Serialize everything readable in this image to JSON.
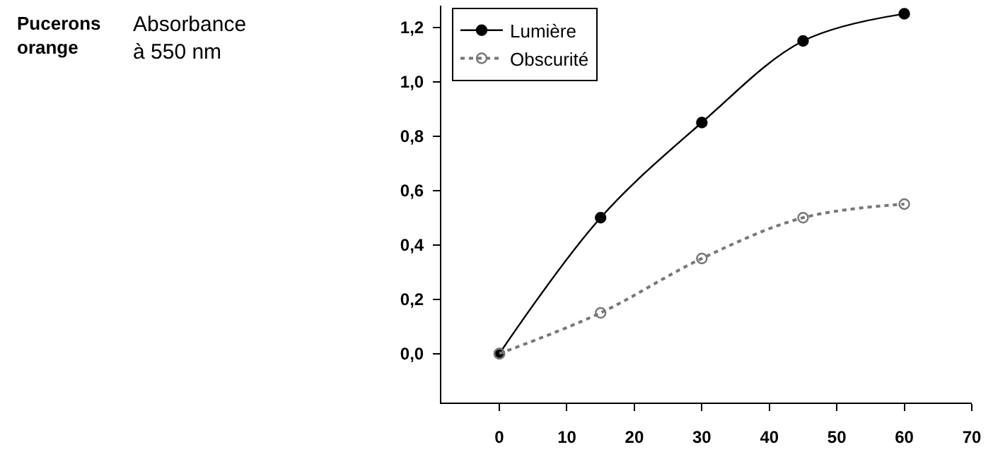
{
  "chart_data": {
    "type": "line",
    "title": "Pucerons orange",
    "annotations": [
      "Absorbance à 550 nm"
    ],
    "x": [
      0,
      15,
      30,
      45,
      60
    ],
    "series": [
      {
        "name": "Lumière",
        "color": "#000000",
        "values": [
          0,
          0.5,
          0.85,
          1.15,
          1.25
        ],
        "line_style": "solid",
        "marker": "circle"
      },
      {
        "name": "Obscurité",
        "color": "#777777",
        "values": [
          0,
          0.15,
          0.35,
          0.5,
          0.55
        ],
        "line_style": "dotted",
        "marker": "circle-open"
      }
    ],
    "xlim": [
      -8.6,
      70
    ],
    "xticks": [
      0,
      10,
      20,
      30,
      40,
      50,
      60,
      70
    ],
    "ylim": [
      -0.18,
      1.28
    ],
    "yticks": [
      {
        "value": 0,
        "label": "0,0"
      },
      {
        "value": 0.2,
        "label": "0,2"
      },
      {
        "value": 0.4,
        "label": "0,4"
      },
      {
        "value": 0.6,
        "label": "0,6"
      },
      {
        "value": 0.8,
        "label": "0,8"
      },
      {
        "value": 1.0,
        "label": "1,0"
      },
      {
        "value": 1.2,
        "label": "1,2"
      }
    ],
    "legend": "top left"
  }
}
